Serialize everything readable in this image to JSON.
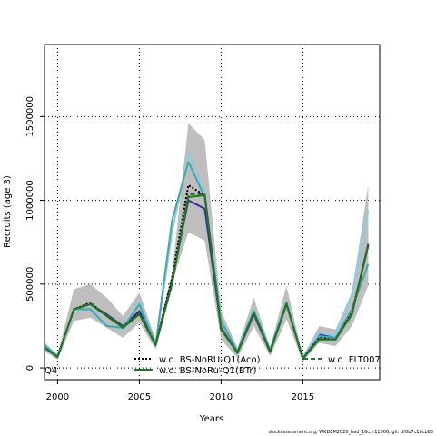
{
  "chart_data": {
    "type": "line",
    "xlabel": "Years",
    "ylabel": "Recruits (age 3)",
    "xlim": [
      1999.2,
      2019.7
    ],
    "ylim": [
      -70000,
      1930000
    ],
    "x_ticks": [
      2000,
      2005,
      2010,
      2015
    ],
    "y_ticks": [
      0,
      500000,
      1000000,
      1500000
    ],
    "y_tick_labels": [
      "0",
      "500000",
      "1000000",
      "1500000"
    ],
    "grid": true,
    "legend_position": "bottom",
    "x": [
      1999,
      2000,
      2001,
      2002,
      2003,
      2004,
      2005,
      2006,
      2007,
      2008,
      2009,
      2010,
      2011,
      2012,
      2013,
      2014,
      2015,
      2016,
      2017,
      2018,
      2019
    ],
    "band": {
      "color": "#bebebe",
      "upper": [
        170000,
        80000,
        470000,
        500000,
        420000,
        310000,
        450000,
        170000,
        560000,
        1460000,
        1360000,
        340000,
        120000,
        420000,
        120000,
        490000,
        70000,
        250000,
        230000,
        450000,
        1090000
      ],
      "lower": [
        110000,
        50000,
        280000,
        300000,
        240000,
        180000,
        270000,
        110000,
        510000,
        810000,
        760000,
        170000,
        60000,
        250000,
        70000,
        290000,
        40000,
        150000,
        130000,
        250000,
        490000
      ]
    },
    "series": [
      {
        "name": "",
        "color": "#333399",
        "style": "solid",
        "values": [
          140000,
          65000,
          350000,
          380000,
          320000,
          250000,
          340000,
          140000,
          520000,
          1000000,
          950000,
          240000,
          90000,
          320000,
          95000,
          390000,
          55000,
          200000,
          180000,
          320000,
          740000
        ]
      },
      {
        "name": "",
        "color": "#87ceeb",
        "style": "solid",
        "values": [
          160000,
          70000,
          340000,
          360000,
          260000,
          230000,
          400000,
          140000,
          810000,
          1280000,
          1040000,
          290000,
          100000,
          350000,
          110000,
          400000,
          60000,
          210000,
          190000,
          440000,
          940000
        ]
      },
      {
        "name": "",
        "color": "#48a6a6",
        "style": "solid",
        "values": [
          150000,
          70000,
          350000,
          350000,
          250000,
          240000,
          380000,
          140000,
          880000,
          1230000,
          1020000,
          280000,
          100000,
          340000,
          110000,
          390000,
          60000,
          190000,
          180000,
          350000,
          620000
        ]
      },
      {
        "name": "BS-NoRu-Q1(Aco)",
        "color": "#000000",
        "style": "dotted",
        "values": [
          135000,
          65000,
          350000,
          390000,
          310000,
          240000,
          330000,
          135000,
          540000,
          1090000,
          1030000,
          230000,
          90000,
          330000,
          95000,
          380000,
          55000,
          180000,
          170000,
          330000,
          730000
        ]
      },
      {
        "name": "BS-NoRu-Q1(BTr)",
        "color": "#1a7a1a",
        "style": "solid",
        "values": [
          135000,
          65000,
          350000,
          380000,
          310000,
          240000,
          320000,
          135000,
          500000,
          1020000,
          1030000,
          230000,
          90000,
          330000,
          95000,
          380000,
          55000,
          170000,
          170000,
          320000,
          730000
        ]
      },
      {
        "name": "FLT007",
        "color": "#2d6b2d",
        "style": "dashed",
        "values": [
          135000,
          65000,
          350000,
          385000,
          315000,
          245000,
          325000,
          135000,
          515000,
          1035000,
          1040000,
          235000,
          90000,
          330000,
          95000,
          385000,
          55000,
          175000,
          170000,
          325000,
          735000
        ]
      }
    ],
    "legend": [
      {
        "label": "w.o. BS-NoRU-Q1(Aco)",
        "color": "#000000",
        "style": "dotted"
      },
      {
        "label": "w.o. BS-NoRu-Q1(BTr)",
        "color": "#1a7a1a",
        "style": "solid"
      },
      {
        "label": "w.o. FLT007",
        "color": "#2d6b2d",
        "style": "dashed"
      }
    ],
    "cut_label": "Q4"
  },
  "footer": "stockassessment.org, WKDEM2020_had_16c, r11606, git: df0b7c1bcb83"
}
